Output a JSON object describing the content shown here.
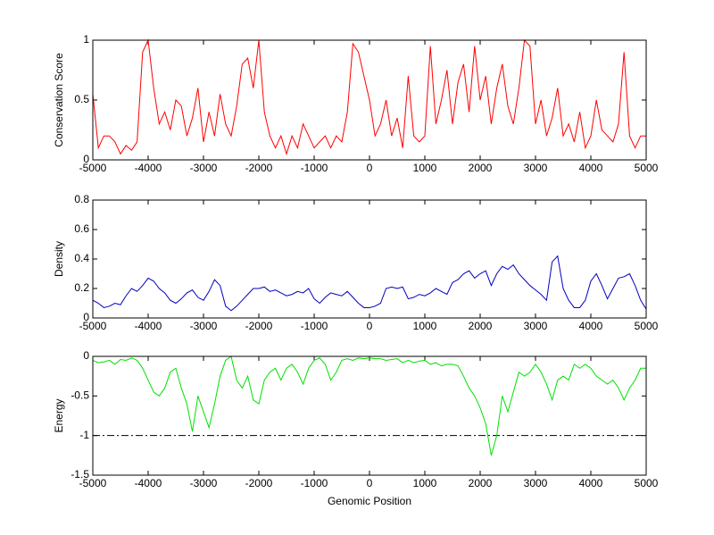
{
  "chart_data": [
    {
      "type": "line",
      "y_label": "Conservation Score",
      "x": [
        -5000,
        -4900,
        -4800,
        -4700,
        -4600,
        -4500,
        -4400,
        -4300,
        -4200,
        -4100,
        -4000,
        -3900,
        -3800,
        -3700,
        -3600,
        -3500,
        -3400,
        -3300,
        -3200,
        -3100,
        -3000,
        -2900,
        -2800,
        -2700,
        -2600,
        -2500,
        -2400,
        -2300,
        -2200,
        -2100,
        -2000,
        -1900,
        -1800,
        -1700,
        -1600,
        -1500,
        -1400,
        -1300,
        -1200,
        -1100,
        -1000,
        -900,
        -800,
        -700,
        -600,
        -500,
        -400,
        -300,
        -200,
        -100,
        0,
        100,
        200,
        300,
        400,
        500,
        600,
        700,
        800,
        900,
        1000,
        1100,
        1200,
        1300,
        1400,
        1500,
        1600,
        1700,
        1800,
        1900,
        2000,
        2100,
        2200,
        2300,
        2400,
        2500,
        2600,
        2700,
        2800,
        2900,
        3000,
        3100,
        3200,
        3300,
        3400,
        3500,
        3600,
        3700,
        3800,
        3900,
        4000,
        4100,
        4200,
        4300,
        4400,
        4500,
        4600,
        4700,
        4800,
        4900,
        5000
      ],
      "series": [
        {
          "color": "#ff0000",
          "values": [
            0.55,
            0.1,
            0.2,
            0.2,
            0.15,
            0.05,
            0.12,
            0.08,
            0.15,
            0.9,
            1.0,
            0.6,
            0.3,
            0.4,
            0.25,
            0.5,
            0.45,
            0.2,
            0.35,
            0.6,
            0.15,
            0.4,
            0.2,
            0.55,
            0.3,
            0.2,
            0.45,
            0.8,
            0.85,
            0.6,
            1.0,
            0.4,
            0.2,
            0.1,
            0.2,
            0.05,
            0.2,
            0.1,
            0.3,
            0.2,
            0.1,
            0.15,
            0.2,
            0.1,
            0.2,
            0.15,
            0.4,
            0.97,
            0.9,
            0.7,
            0.5,
            0.2,
            0.3,
            0.5,
            0.2,
            0.35,
            0.1,
            0.7,
            0.2,
            0.15,
            0.2,
            0.95,
            0.3,
            0.5,
            0.75,
            0.3,
            0.65,
            0.8,
            0.4,
            0.95,
            0.5,
            0.7,
            0.3,
            0.6,
            0.8,
            0.45,
            0.3,
            0.6,
            1.0,
            0.95,
            0.3,
            0.5,
            0.2,
            0.35,
            0.6,
            0.2,
            0.3,
            0.15,
            0.4,
            0.1,
            0.2,
            0.5,
            0.25,
            0.2,
            0.15,
            0.3,
            0.9,
            0.2,
            0.1,
            0.2,
            0.2
          ]
        }
      ],
      "xlim": [
        -5000,
        5000
      ],
      "xticks": [
        -5000,
        -4000,
        -3000,
        -2000,
        -1000,
        0,
        1000,
        2000,
        3000,
        4000,
        5000
      ],
      "ylim": [
        0,
        1
      ],
      "yticks": [
        0,
        0.5,
        1
      ],
      "grid": false
    },
    {
      "type": "line",
      "y_label": "Density",
      "x": [
        -5000,
        -4900,
        -4800,
        -4700,
        -4600,
        -4500,
        -4400,
        -4300,
        -4200,
        -4100,
        -4000,
        -3900,
        -3800,
        -3700,
        -3600,
        -3500,
        -3400,
        -3300,
        -3200,
        -3100,
        -3000,
        -2900,
        -2800,
        -2700,
        -2600,
        -2500,
        -2400,
        -2300,
        -2200,
        -2100,
        -2000,
        -1900,
        -1800,
        -1700,
        -1600,
        -1500,
        -1400,
        -1300,
        -1200,
        -1100,
        -1000,
        -900,
        -800,
        -700,
        -600,
        -500,
        -400,
        -300,
        -200,
        -100,
        0,
        100,
        200,
        300,
        400,
        500,
        600,
        700,
        800,
        900,
        1000,
        1100,
        1200,
        1300,
        1400,
        1500,
        1600,
        1700,
        1800,
        1900,
        2000,
        2100,
        2200,
        2300,
        2400,
        2500,
        2600,
        2700,
        2800,
        2900,
        3000,
        3100,
        3200,
        3300,
        3400,
        3500,
        3600,
        3700,
        3800,
        3900,
        4000,
        4100,
        4200,
        4300,
        4400,
        4500,
        4600,
        4700,
        4800,
        4900,
        5000
      ],
      "series": [
        {
          "color": "#0000c0",
          "values": [
            0.12,
            0.1,
            0.07,
            0.08,
            0.1,
            0.09,
            0.15,
            0.2,
            0.18,
            0.22,
            0.27,
            0.25,
            0.2,
            0.17,
            0.12,
            0.1,
            0.13,
            0.17,
            0.19,
            0.14,
            0.12,
            0.18,
            0.26,
            0.22,
            0.08,
            0.05,
            0.08,
            0.12,
            0.16,
            0.2,
            0.2,
            0.21,
            0.18,
            0.19,
            0.17,
            0.15,
            0.16,
            0.18,
            0.17,
            0.2,
            0.13,
            0.1,
            0.14,
            0.17,
            0.16,
            0.15,
            0.18,
            0.14,
            0.1,
            0.07,
            0.07,
            0.08,
            0.1,
            0.2,
            0.21,
            0.2,
            0.21,
            0.13,
            0.14,
            0.16,
            0.15,
            0.17,
            0.2,
            0.18,
            0.16,
            0.24,
            0.26,
            0.3,
            0.32,
            0.27,
            0.3,
            0.32,
            0.22,
            0.3,
            0.35,
            0.33,
            0.36,
            0.3,
            0.26,
            0.22,
            0.19,
            0.16,
            0.12,
            0.38,
            0.42,
            0.2,
            0.12,
            0.07,
            0.07,
            0.12,
            0.25,
            0.3,
            0.22,
            0.13,
            0.2,
            0.27,
            0.28,
            0.3,
            0.22,
            0.12,
            0.06
          ]
        }
      ],
      "xlim": [
        -5000,
        5000
      ],
      "xticks": [
        -5000,
        -4000,
        -3000,
        -2000,
        -1000,
        0,
        1000,
        2000,
        3000,
        4000,
        5000
      ],
      "ylim": [
        0,
        0.8
      ],
      "yticks": [
        0,
        0.2,
        0.4,
        0.6,
        0.8
      ],
      "grid": false
    },
    {
      "type": "line",
      "y_label": "Energy",
      "x_label": "Genomic Position",
      "x": [
        -5000,
        -4900,
        -4800,
        -4700,
        -4600,
        -4500,
        -4400,
        -4300,
        -4200,
        -4100,
        -4000,
        -3900,
        -3800,
        -3700,
        -3600,
        -3500,
        -3400,
        -3300,
        -3200,
        -3100,
        -3000,
        -2900,
        -2800,
        -2700,
        -2600,
        -2500,
        -2400,
        -2300,
        -2200,
        -2100,
        -2000,
        -1900,
        -1800,
        -1700,
        -1600,
        -1500,
        -1400,
        -1300,
        -1200,
        -1100,
        -1000,
        -900,
        -800,
        -700,
        -600,
        -500,
        -400,
        -300,
        -200,
        -100,
        0,
        100,
        200,
        300,
        400,
        500,
        600,
        700,
        800,
        900,
        1000,
        1100,
        1200,
        1300,
        1400,
        1500,
        1600,
        1700,
        1800,
        1900,
        2000,
        2100,
        2200,
        2300,
        2400,
        2500,
        2600,
        2700,
        2800,
        2900,
        3000,
        3100,
        3200,
        3300,
        3400,
        3500,
        3600,
        3700,
        3800,
        3900,
        4000,
        4100,
        4200,
        4300,
        4400,
        4500,
        4600,
        4700,
        4800,
        4900,
        5000
      ],
      "series": [
        {
          "color": "#00e000",
          "values": [
            -0.05,
            -0.08,
            -0.07,
            -0.05,
            -0.1,
            -0.04,
            -0.05,
            -0.02,
            -0.05,
            -0.15,
            -0.3,
            -0.45,
            -0.5,
            -0.4,
            -0.2,
            -0.15,
            -0.4,
            -0.6,
            -0.95,
            -0.5,
            -0.7,
            -0.9,
            -0.6,
            -0.25,
            -0.05,
            0,
            -0.3,
            -0.4,
            -0.25,
            -0.55,
            -0.6,
            -0.3,
            -0.2,
            -0.15,
            -0.3,
            -0.15,
            -0.1,
            -0.2,
            -0.35,
            -0.15,
            -0.05,
            -0.02,
            -0.1,
            -0.3,
            -0.2,
            -0.05,
            -0.03,
            -0.05,
            -0.02,
            -0.03,
            -0.02,
            -0.03,
            -0.03,
            -0.05,
            -0.04,
            -0.03,
            -0.08,
            -0.05,
            -0.08,
            -0.06,
            -0.05,
            -0.1,
            -0.08,
            -0.12,
            -0.1,
            -0.1,
            -0.12,
            -0.25,
            -0.4,
            -0.5,
            -0.65,
            -0.85,
            -1.25,
            -1.0,
            -0.5,
            -0.7,
            -0.45,
            -0.2,
            -0.25,
            -0.2,
            -0.1,
            -0.2,
            -0.35,
            -0.55,
            -0.3,
            -0.25,
            -0.3,
            -0.1,
            -0.15,
            -0.1,
            -0.15,
            -0.25,
            -0.3,
            -0.35,
            -0.3,
            -0.4,
            -0.55,
            -0.4,
            -0.3,
            -0.15,
            -0.15
          ]
        }
      ],
      "reference_line": {
        "value": -1,
        "color": "#000000",
        "style": "dash-dot"
      },
      "xlim": [
        -5000,
        5000
      ],
      "xticks": [
        -5000,
        -4000,
        -3000,
        -2000,
        -1000,
        0,
        1000,
        2000,
        3000,
        4000,
        5000
      ],
      "ylim": [
        -1.5,
        0
      ],
      "yticks": [
        -1.5,
        -1,
        -0.5,
        0
      ],
      "grid": false
    }
  ]
}
